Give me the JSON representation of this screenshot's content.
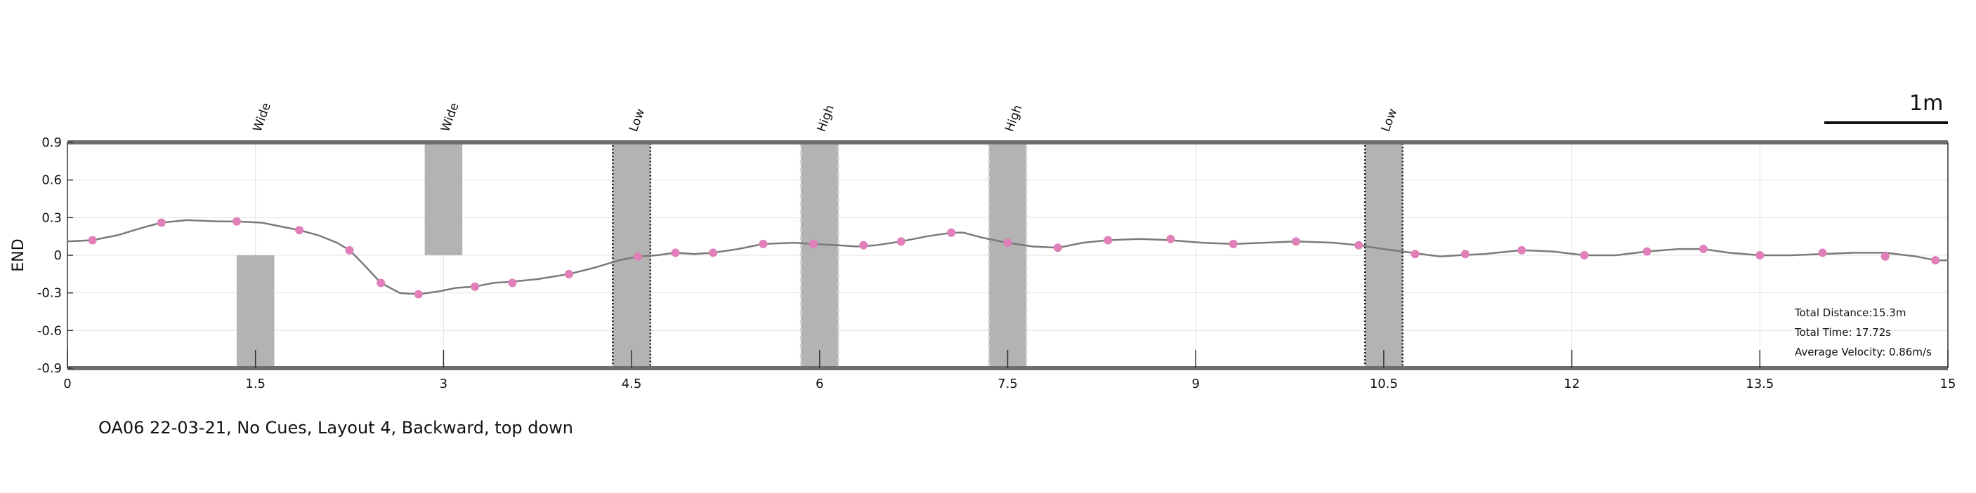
{
  "chart_data": {
    "type": "line",
    "ylabel": "END",
    "xlabel": "",
    "xlim": [
      0,
      15
    ],
    "ylim": [
      -0.9,
      0.9
    ],
    "x_ticks": [
      "0",
      "1.5",
      "3",
      "4.5",
      "6",
      "7.5",
      "9",
      "10.5",
      "12",
      "13.5",
      "15"
    ],
    "y_ticks": [
      "0.9",
      "0.6",
      "0.3",
      "0",
      "-0.3",
      "-0.6",
      "-0.9"
    ],
    "grid": true,
    "line_color": "#7a7a7a",
    "marker_color": "#e07fb8",
    "obstacle_color": "#b3b3b3",
    "path": {
      "x": [
        0,
        0.2,
        0.4,
        0.6,
        0.75,
        0.95,
        1.2,
        1.35,
        1.55,
        1.7,
        1.85,
        2.0,
        2.15,
        2.25,
        2.35,
        2.5,
        2.65,
        2.8,
        2.95,
        3.1,
        3.25,
        3.4,
        3.55,
        3.75,
        4.0,
        4.2,
        4.4,
        4.55,
        4.7,
        4.85,
        5.0,
        5.15,
        5.35,
        5.55,
        5.8,
        5.95,
        6.15,
        6.3,
        6.45,
        6.65,
        6.85,
        7.05,
        7.15,
        7.3,
        7.5,
        7.7,
        7.9,
        8.1,
        8.3,
        8.55,
        8.8,
        9.05,
        9.3,
        9.55,
        9.8,
        10.1,
        10.3,
        10.5,
        10.65,
        10.8,
        10.95,
        11.1,
        11.3,
        11.6,
        11.85,
        12.1,
        12.35,
        12.6,
        12.85,
        13.05,
        13.25,
        13.5,
        13.75,
        14.0,
        14.25,
        14.5,
        14.75,
        14.9,
        15.0
      ],
      "y": [
        0.11,
        0.12,
        0.16,
        0.22,
        0.26,
        0.28,
        0.27,
        0.27,
        0.26,
        0.23,
        0.2,
        0.16,
        0.1,
        0.04,
        -0.06,
        -0.22,
        -0.3,
        -0.31,
        -0.29,
        -0.26,
        -0.25,
        -0.22,
        -0.21,
        -0.19,
        -0.15,
        -0.1,
        -0.04,
        -0.01,
        0.0,
        0.02,
        0.01,
        0.02,
        0.05,
        0.09,
        0.1,
        0.09,
        0.08,
        0.07,
        0.08,
        0.11,
        0.15,
        0.18,
        0.18,
        0.14,
        0.1,
        0.07,
        0.06,
        0.1,
        0.12,
        0.13,
        0.12,
        0.1,
        0.09,
        0.1,
        0.11,
        0.1,
        0.08,
        0.05,
        0.03,
        0.01,
        -0.01,
        0.0,
        0.01,
        0.04,
        0.03,
        0.0,
        0.0,
        0.03,
        0.05,
        0.05,
        0.02,
        0.0,
        0.0,
        0.01,
        0.02,
        0.02,
        -0.01,
        -0.04,
        -0.04
      ]
    },
    "markers": {
      "x": [
        0.2,
        0.75,
        1.35,
        1.85,
        2.25,
        2.5,
        2.8,
        3.25,
        3.55,
        4.0,
        4.55,
        4.85,
        5.15,
        5.55,
        5.95,
        6.35,
        6.65,
        7.05,
        7.5,
        7.9,
        8.3,
        8.8,
        9.3,
        9.8,
        10.3,
        10.75,
        11.15,
        11.6,
        12.1,
        12.6,
        13.05,
        13.5,
        14.0,
        14.5,
        14.9
      ],
      "y": [
        0.12,
        0.26,
        0.27,
        0.2,
        0.04,
        -0.22,
        -0.31,
        -0.25,
        -0.22,
        -0.15,
        -0.01,
        0.02,
        0.02,
        0.09,
        0.09,
        0.08,
        0.11,
        0.18,
        0.1,
        0.06,
        0.12,
        0.13,
        0.09,
        0.11,
        0.08,
        0.01,
        0.01,
        0.04,
        0.0,
        0.03,
        0.05,
        0.0,
        0.02,
        -0.01,
        -0.04
      ]
    },
    "obstacles": [
      {
        "label": "Wide",
        "x0": 1.35,
        "x1": 1.65,
        "y0": -0.9,
        "y1": 0.0,
        "style": "solid"
      },
      {
        "label": "Wide",
        "x0": 2.85,
        "x1": 3.15,
        "y0": 0.0,
        "y1": 0.9,
        "style": "solid"
      },
      {
        "label": "Low",
        "x0": 4.35,
        "x1": 4.65,
        "y0": -0.9,
        "y1": 0.9,
        "style": "dotted"
      },
      {
        "label": "High",
        "x0": 5.85,
        "x1": 6.15,
        "y0": -0.9,
        "y1": 0.9,
        "style": "dashed"
      },
      {
        "label": "High",
        "x0": 7.35,
        "x1": 7.65,
        "y0": -0.9,
        "y1": 0.9,
        "style": "dashed"
      },
      {
        "label": "Low",
        "x0": 10.35,
        "x1": 10.65,
        "y0": -0.9,
        "y1": 0.9,
        "style": "dotted"
      }
    ],
    "scale_bar": "1m",
    "stats": [
      "Total Distance:15.3m",
      "Total Time: 17.72s",
      "Average Velocity: 0.86m/s"
    ],
    "caption": "OA06 22-03-21, No Cues, Layout 4, Backward, top down"
  }
}
